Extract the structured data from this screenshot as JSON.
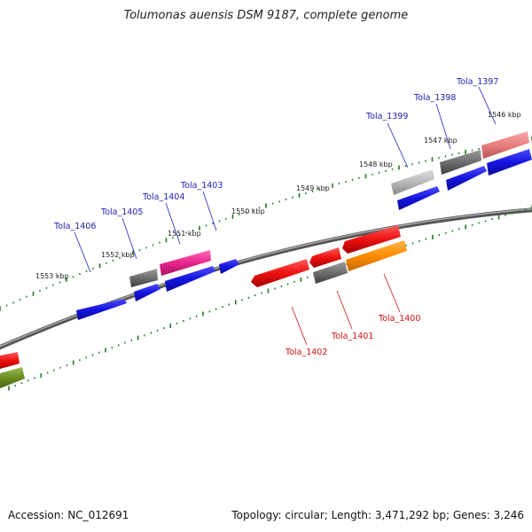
{
  "header": {
    "title": "Tolumonas auensis DSM 9187, complete genome"
  },
  "footer": {
    "accession": "Accession: NC_012691",
    "topology": "Topology: circular; Length: 3,471,292 bp; Genes: 3,246"
  },
  "scale": {
    "ticks": [
      "1553 kbp",
      "1552 kbp",
      "1551 kbp",
      "1550 kbp",
      "1549 kbp",
      "1548 kbp",
      "1547 kbp",
      "1546 kbp"
    ]
  },
  "genes": {
    "forward_labels": [
      "Tola_1406",
      "Tola_1405",
      "Tola_1404",
      "Tola_1403",
      "Tola_1399",
      "Tola_1398",
      "Tola_1397"
    ],
    "reverse_labels": [
      "Tola_1402",
      "Tola_1401",
      "Tola_1400"
    ]
  },
  "colors": {
    "forward_label": "#1f1fb0",
    "reverse_label": "#cc1111",
    "blue_feature": "#1515e0",
    "red_feature": "#ee1111",
    "grey_feature": "#6e6e6e",
    "pink_feature": "#e8268f",
    "salmon_feature": "#e87f7f",
    "lightgrey_feature": "#b9b9b9",
    "orange_feature": "#ff8c00",
    "olive_feature": "#6b8e23",
    "tick_color": "#1e7b1e",
    "backbone": "#7a7a7a"
  }
}
